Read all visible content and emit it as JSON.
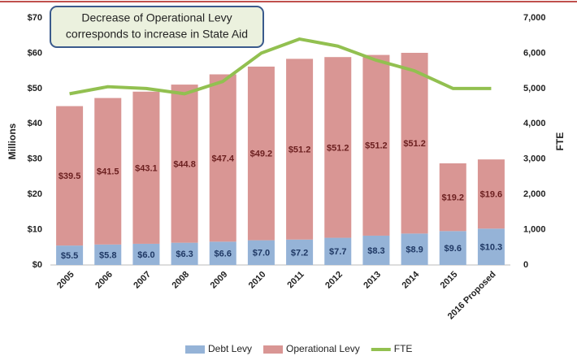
{
  "chart_data": {
    "type": "bar-line",
    "annotation": [
      "Decrease of Operational Levy",
      "corresponds to increase in State Aid"
    ],
    "y_label": "Millions",
    "y2_label": "FTE",
    "categories": [
      "2005",
      "2006",
      "2007",
      "2008",
      "2009",
      "2010",
      "2011",
      "2012",
      "2013",
      "2014",
      "2015",
      "2016 Proposed"
    ],
    "series": [
      {
        "name": "Debt Levy",
        "type": "bar",
        "color": "#95b3d7",
        "label_color": "#1f3864",
        "values": [
          5.5,
          5.8,
          6.0,
          6.3,
          6.6,
          7.0,
          7.2,
          7.7,
          8.3,
          8.9,
          9.6,
          10.3
        ],
        "value_labels": [
          "$5.5",
          "$5.8",
          "$6.0",
          "$6.3",
          "$6.6",
          "$7.0",
          "$7.2",
          "$7.7",
          "$8.3",
          "$8.9",
          "$9.6",
          "$10.3"
        ]
      },
      {
        "name": "Operational Levy",
        "type": "bar",
        "color": "#d99694",
        "label_color": "#6b1f1f",
        "values": [
          39.5,
          41.5,
          43.1,
          44.8,
          47.4,
          49.2,
          51.2,
          51.2,
          51.2,
          51.2,
          19.2,
          19.6
        ],
        "value_labels": [
          "$39.5",
          "$41.5",
          "$43.1",
          "$44.8",
          "$47.4",
          "$49.2",
          "$51.2",
          "$51.2",
          "$51.2",
          "$51.2",
          "$19.2",
          "$19.6"
        ]
      },
      {
        "name": "FTE",
        "type": "line",
        "axis": "y2",
        "color": "#92c050",
        "values": [
          4850,
          5050,
          5000,
          4850,
          5200,
          6000,
          6400,
          6200,
          5800,
          5500,
          5000,
          5000
        ]
      }
    ],
    "ylim": [
      0,
      70
    ],
    "yticks": [
      {
        "value": 0,
        "label": "$0"
      },
      {
        "value": 10,
        "label": "$10"
      },
      {
        "value": 20,
        "label": "$20"
      },
      {
        "value": 30,
        "label": "$30"
      },
      {
        "value": 40,
        "label": "$40"
      },
      {
        "value": 50,
        "label": "$50"
      },
      {
        "value": 60,
        "label": "$60"
      },
      {
        "value": 70,
        "label": "$70"
      }
    ],
    "y2lim": [
      0,
      7000
    ],
    "y2ticks": [
      0,
      {
        "value": 1000,
        "label": "1,000"
      },
      {
        "value": 2000,
        "label": "2,000"
      },
      {
        "value": 3000,
        "label": "3,000"
      },
      {
        "value": 4000,
        "label": "4,000"
      },
      {
        "value": 5000,
        "label": "5,000"
      },
      {
        "value": 6000,
        "label": "6,000"
      },
      {
        "value": 7000,
        "label": "7,000"
      }
    ],
    "grid": false,
    "legend": "bottom"
  }
}
